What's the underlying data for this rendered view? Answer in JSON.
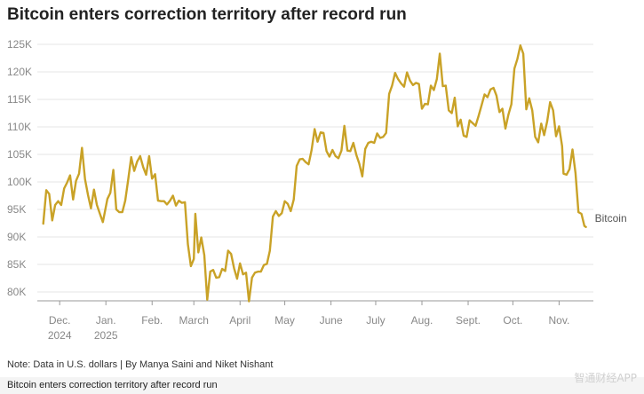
{
  "header": {
    "title": "Bitcoin enters correction territory after record run"
  },
  "footer": {
    "note": "Note: Data in U.S. dollars | By Manya Saini and Niket Nishant",
    "caption": "Bitcoin enters correction territory after record run",
    "watermark": "智通财经APP"
  },
  "colors": {
    "line": "#c9a227",
    "grid": "#e6e6e6",
    "axis": "#999999"
  },
  "chart_data": {
    "type": "line",
    "title": "Bitcoin enters correction territory after record run",
    "xlabel": "",
    "ylabel": "",
    "ylim": [
      76000,
      127000
    ],
    "grid": true,
    "legend": "none",
    "y_ticks": [
      {
        "value": 80000,
        "label": "80K"
      },
      {
        "value": 85000,
        "label": "85K"
      },
      {
        "value": 90000,
        "label": "90K"
      },
      {
        "value": 95000,
        "label": "95K"
      },
      {
        "value": 100000,
        "label": "100K"
      },
      {
        "value": 105000,
        "label": "105K"
      },
      {
        "value": 110000,
        "label": "110K"
      },
      {
        "value": 115000,
        "label": "115K"
      },
      {
        "value": 120000,
        "label": "120K"
      },
      {
        "value": 125000,
        "label": "125K"
      }
    ],
    "x_ticks": [
      {
        "date": "2024-12-01",
        "label": "Dec.",
        "sublabel": "2024"
      },
      {
        "date": "2025-01-01",
        "label": "Jan.",
        "sublabel": "2025"
      },
      {
        "date": "2025-02-01",
        "label": "Feb.",
        "sublabel": ""
      },
      {
        "date": "2025-03-01",
        "label": "March",
        "sublabel": ""
      },
      {
        "date": "2025-04-01",
        "label": "April",
        "sublabel": ""
      },
      {
        "date": "2025-05-01",
        "label": "May",
        "sublabel": ""
      },
      {
        "date": "2025-06-01",
        "label": "June",
        "sublabel": ""
      },
      {
        "date": "2025-07-01",
        "label": "July",
        "sublabel": ""
      },
      {
        "date": "2025-08-01",
        "label": "Aug.",
        "sublabel": ""
      },
      {
        "date": "2025-09-01",
        "label": "Sept.",
        "sublabel": ""
      },
      {
        "date": "2025-10-01",
        "label": "Oct.",
        "sublabel": ""
      },
      {
        "date": "2025-11-01",
        "label": "Nov.",
        "sublabel": ""
      }
    ],
    "series": [
      {
        "name": "Bitcoin",
        "points": [
          [
            "2024-11-20",
            92400
          ],
          [
            "2024-11-22",
            98500
          ],
          [
            "2024-11-24",
            97800
          ],
          [
            "2024-11-26",
            93000
          ],
          [
            "2024-11-28",
            95800
          ],
          [
            "2024-11-30",
            96500
          ],
          [
            "2024-12-02",
            95800
          ],
          [
            "2024-12-04",
            98800
          ],
          [
            "2024-12-06",
            99900
          ],
          [
            "2024-12-08",
            101200
          ],
          [
            "2024-12-10",
            96800
          ],
          [
            "2024-12-12",
            100200
          ],
          [
            "2024-12-14",
            101500
          ],
          [
            "2024-12-16",
            106200
          ],
          [
            "2024-12-18",
            100500
          ],
          [
            "2024-12-20",
            97600
          ],
          [
            "2024-12-22",
            95200
          ],
          [
            "2024-12-24",
            98600
          ],
          [
            "2024-12-26",
            95800
          ],
          [
            "2024-12-28",
            94200
          ],
          [
            "2024-12-30",
            92700
          ],
          [
            "2025-01-02",
            96900
          ],
          [
            "2025-01-04",
            98000
          ],
          [
            "2025-01-06",
            102200
          ],
          [
            "2025-01-08",
            95000
          ],
          [
            "2025-01-10",
            94500
          ],
          [
            "2025-01-12",
            94500
          ],
          [
            "2025-01-14",
            96600
          ],
          [
            "2025-01-16",
            100500
          ],
          [
            "2025-01-18",
            104500
          ],
          [
            "2025-01-20",
            102000
          ],
          [
            "2025-01-22",
            103700
          ],
          [
            "2025-01-24",
            104700
          ],
          [
            "2025-01-26",
            102700
          ],
          [
            "2025-01-28",
            101300
          ],
          [
            "2025-01-30",
            104700
          ],
          [
            "2025-02-01",
            100600
          ],
          [
            "2025-02-03",
            101400
          ],
          [
            "2025-02-05",
            96600
          ],
          [
            "2025-02-07",
            96500
          ],
          [
            "2025-02-09",
            96500
          ],
          [
            "2025-02-11",
            95900
          ],
          [
            "2025-02-13",
            96600
          ],
          [
            "2025-02-15",
            97500
          ],
          [
            "2025-02-17",
            95700
          ],
          [
            "2025-02-19",
            96600
          ],
          [
            "2025-02-21",
            96200
          ],
          [
            "2025-02-23",
            96300
          ],
          [
            "2025-02-25",
            88700
          ],
          [
            "2025-02-27",
            84700
          ],
          [
            "2025-03-01",
            86000
          ],
          [
            "2025-03-02",
            94200
          ],
          [
            "2025-03-04",
            87200
          ],
          [
            "2025-03-06",
            89900
          ],
          [
            "2025-03-08",
            86700
          ],
          [
            "2025-03-10",
            78600
          ],
          [
            "2025-03-12",
            83700
          ],
          [
            "2025-03-14",
            84000
          ],
          [
            "2025-03-16",
            82600
          ],
          [
            "2025-03-18",
            82700
          ],
          [
            "2025-03-20",
            84200
          ],
          [
            "2025-03-22",
            83800
          ],
          [
            "2025-03-24",
            87500
          ],
          [
            "2025-03-26",
            86900
          ],
          [
            "2025-03-28",
            84300
          ],
          [
            "2025-03-30",
            82400
          ],
          [
            "2025-04-01",
            85200
          ],
          [
            "2025-04-03",
            83200
          ],
          [
            "2025-04-05",
            83500
          ],
          [
            "2025-04-07",
            78300
          ],
          [
            "2025-04-09",
            82600
          ],
          [
            "2025-04-11",
            83500
          ],
          [
            "2025-04-13",
            83700
          ],
          [
            "2025-04-15",
            83700
          ],
          [
            "2025-04-17",
            84900
          ],
          [
            "2025-04-19",
            85100
          ],
          [
            "2025-04-21",
            87500
          ],
          [
            "2025-04-23",
            93700
          ],
          [
            "2025-04-25",
            94700
          ],
          [
            "2025-04-27",
            93800
          ],
          [
            "2025-04-29",
            94300
          ],
          [
            "2025-05-01",
            96500
          ],
          [
            "2025-05-03",
            96000
          ],
          [
            "2025-05-05",
            94700
          ],
          [
            "2025-05-07",
            96800
          ],
          [
            "2025-05-09",
            102900
          ],
          [
            "2025-05-11",
            104100
          ],
          [
            "2025-05-13",
            104200
          ],
          [
            "2025-05-15",
            103600
          ],
          [
            "2025-05-17",
            103200
          ],
          [
            "2025-05-19",
            105800
          ],
          [
            "2025-05-21",
            109600
          ],
          [
            "2025-05-23",
            107300
          ],
          [
            "2025-05-25",
            109000
          ],
          [
            "2025-05-27",
            108900
          ],
          [
            "2025-05-29",
            105600
          ],
          [
            "2025-05-31",
            104600
          ],
          [
            "2025-06-02",
            105800
          ],
          [
            "2025-06-04",
            104700
          ],
          [
            "2025-06-06",
            104300
          ],
          [
            "2025-06-08",
            105700
          ],
          [
            "2025-06-10",
            110200
          ],
          [
            "2025-06-12",
            105700
          ],
          [
            "2025-06-14",
            105600
          ],
          [
            "2025-06-16",
            107100
          ],
          [
            "2025-06-18",
            104900
          ],
          [
            "2025-06-20",
            103300
          ],
          [
            "2025-06-22",
            101000
          ],
          [
            "2025-06-24",
            106000
          ],
          [
            "2025-06-26",
            107100
          ],
          [
            "2025-06-28",
            107300
          ],
          [
            "2025-06-30",
            107100
          ],
          [
            "2025-07-02",
            108800
          ],
          [
            "2025-07-04",
            108000
          ],
          [
            "2025-07-06",
            108200
          ],
          [
            "2025-07-08",
            108900
          ],
          [
            "2025-07-10",
            116000
          ],
          [
            "2025-07-12",
            117500
          ],
          [
            "2025-07-14",
            119800
          ],
          [
            "2025-07-16",
            118700
          ],
          [
            "2025-07-18",
            117900
          ],
          [
            "2025-07-20",
            117300
          ],
          [
            "2025-07-22",
            119900
          ],
          [
            "2025-07-24",
            118400
          ],
          [
            "2025-07-26",
            117600
          ],
          [
            "2025-07-28",
            118000
          ],
          [
            "2025-07-30",
            117800
          ],
          [
            "2025-08-01",
            113300
          ],
          [
            "2025-08-03",
            114200
          ],
          [
            "2025-08-05",
            114100
          ],
          [
            "2025-08-07",
            117500
          ],
          [
            "2025-08-09",
            116700
          ],
          [
            "2025-08-11",
            118700
          ],
          [
            "2025-08-13",
            123300
          ],
          [
            "2025-08-15",
            117400
          ],
          [
            "2025-08-17",
            117500
          ],
          [
            "2025-08-19",
            113000
          ],
          [
            "2025-08-21",
            112500
          ],
          [
            "2025-08-23",
            115300
          ],
          [
            "2025-08-25",
            110100
          ],
          [
            "2025-08-27",
            111300
          ],
          [
            "2025-08-29",
            108400
          ],
          [
            "2025-08-31",
            108200
          ],
          [
            "2025-09-02",
            111200
          ],
          [
            "2025-09-04",
            110700
          ],
          [
            "2025-09-06",
            110200
          ],
          [
            "2025-09-08",
            112000
          ],
          [
            "2025-09-10",
            113900
          ],
          [
            "2025-09-12",
            115900
          ],
          [
            "2025-09-14",
            115400
          ],
          [
            "2025-09-16",
            116800
          ],
          [
            "2025-09-18",
            117100
          ],
          [
            "2025-09-20",
            115700
          ],
          [
            "2025-09-22",
            112700
          ],
          [
            "2025-09-24",
            113300
          ],
          [
            "2025-09-26",
            109700
          ],
          [
            "2025-09-28",
            112200
          ],
          [
            "2025-09-30",
            114100
          ],
          [
            "2025-10-02",
            120600
          ],
          [
            "2025-10-04",
            122300
          ],
          [
            "2025-10-06",
            124800
          ],
          [
            "2025-10-08",
            123300
          ],
          [
            "2025-10-10",
            113200
          ],
          [
            "2025-10-12",
            115200
          ],
          [
            "2025-10-14",
            113000
          ],
          [
            "2025-10-16",
            108200
          ],
          [
            "2025-10-18",
            107200
          ],
          [
            "2025-10-20",
            110600
          ],
          [
            "2025-10-22",
            108500
          ],
          [
            "2025-10-24",
            111000
          ],
          [
            "2025-10-26",
            114500
          ],
          [
            "2025-10-28",
            113000
          ],
          [
            "2025-10-30",
            108300
          ],
          [
            "2025-11-01",
            110100
          ],
          [
            "2025-11-03",
            106500
          ],
          [
            "2025-11-04",
            101500
          ],
          [
            "2025-11-06",
            101300
          ],
          [
            "2025-11-08",
            102300
          ],
          [
            "2025-11-10",
            105900
          ],
          [
            "2025-11-12",
            101600
          ],
          [
            "2025-11-14",
            94500
          ],
          [
            "2025-11-16",
            94200
          ],
          [
            "2025-11-18",
            92000
          ],
          [
            "2025-11-19",
            91800
          ]
        ]
      }
    ]
  }
}
